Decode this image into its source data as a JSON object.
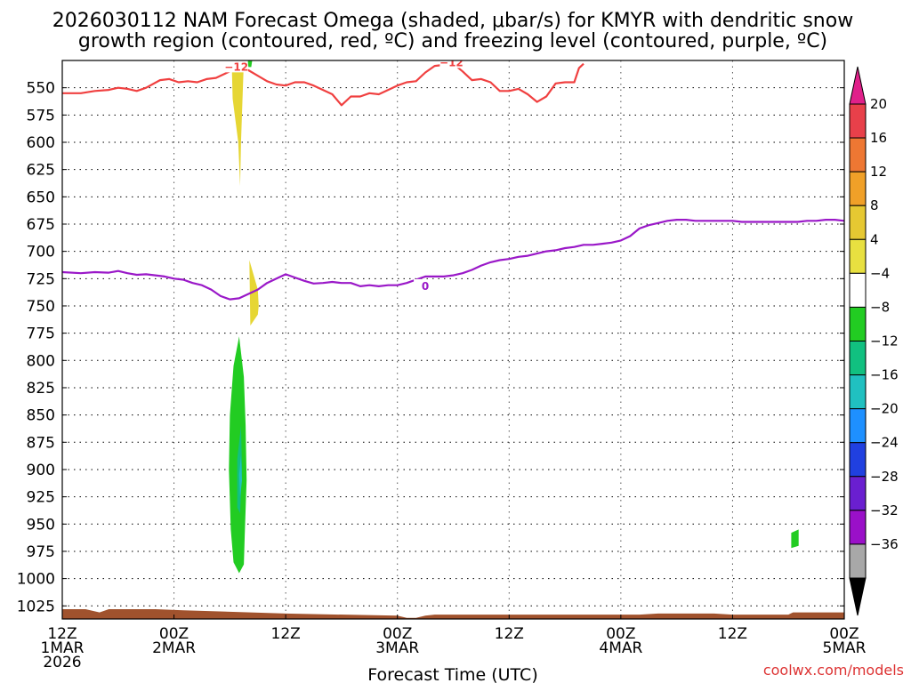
{
  "chart_data": {
    "type": "time-height",
    "title_line1": "2026030112 NAM Forecast Omega (shaded, μbar/s) for KMYR with dendritic snow",
    "title_line2": "growth region (contoured, red, ºC) and freezing level (contoured, purple, ºC)",
    "xlabel": "Forecast Time (UTC)",
    "credit": "coolwx.com/models",
    "x_hours_range": [
      0,
      84
    ],
    "y_range_hPa": [
      525,
      1037
    ],
    "yticks": [
      550,
      575,
      600,
      625,
      650,
      675,
      700,
      725,
      750,
      775,
      800,
      825,
      850,
      875,
      900,
      925,
      950,
      975,
      1000,
      1025
    ],
    "xticks": [
      {
        "hour": 0,
        "l1": "12Z",
        "l2": "1MAR",
        "l3": "2026"
      },
      {
        "hour": 12,
        "l1": "00Z",
        "l2": "2MAR",
        "l3": ""
      },
      {
        "hour": 24,
        "l1": "12Z",
        "l2": "",
        "l3": ""
      },
      {
        "hour": 36,
        "l1": "00Z",
        "l2": "3MAR",
        "l3": ""
      },
      {
        "hour": 48,
        "l1": "12Z",
        "l2": "",
        "l3": ""
      },
      {
        "hour": 60,
        "l1": "00Z",
        "l2": "4MAR",
        "l3": ""
      },
      {
        "hour": 72,
        "l1": "12Z",
        "l2": "",
        "l3": ""
      },
      {
        "hour": 84,
        "l1": "00Z",
        "l2": "5MAR",
        "l3": ""
      }
    ],
    "colorbar": {
      "labels": [
        "20",
        "16",
        "12",
        "8",
        "4",
        "−4",
        "−8",
        "−12",
        "−16",
        "−20",
        "−24",
        "−28",
        "−32",
        "−36"
      ],
      "colors": [
        "#e8404a",
        "#ee7733",
        "#f0a028",
        "#e6c832",
        "#e8e040",
        "#ffffff",
        "#22cc22",
        "#11c080",
        "#20c0c0",
        "#1e90ff",
        "#2040e0",
        "#6a1fd0",
        "#9a10c8",
        "#a8a8a8"
      ],
      "top_arrow_color": "#e0208a",
      "bottom_arrow_color": "#000000"
    },
    "dendritic_line": {
      "label": "−12",
      "color": "#f04040",
      "points": [
        [
          0,
          555
        ],
        [
          2,
          555
        ],
        [
          3.5,
          553
        ],
        [
          5,
          552
        ],
        [
          6,
          550
        ],
        [
          7,
          551
        ],
        [
          8,
          553
        ],
        [
          9,
          550
        ],
        [
          10.5,
          543
        ],
        [
          11.5,
          542
        ],
        [
          12.5,
          545
        ],
        [
          13.5,
          544
        ],
        [
          14.5,
          545
        ],
        [
          15.5,
          542
        ],
        [
          16.5,
          541
        ],
        [
          17.5,
          537
        ],
        [
          18.5,
          533
        ],
        [
          19,
          532
        ],
        [
          20,
          534
        ],
        [
          21,
          539
        ],
        [
          22,
          544
        ],
        [
          23,
          547
        ],
        [
          24,
          548
        ],
        [
          25,
          545
        ],
        [
          26,
          545
        ],
        [
          27,
          548
        ],
        [
          28,
          552
        ],
        [
          29,
          556
        ],
        [
          30,
          566
        ],
        [
          31,
          558
        ],
        [
          32,
          558
        ],
        [
          33,
          555
        ],
        [
          34,
          556
        ],
        [
          35,
          552
        ],
        [
          36,
          548
        ],
        [
          37,
          545
        ],
        [
          38,
          544
        ],
        [
          39,
          536
        ],
        [
          40,
          530
        ],
        [
          42,
          528
        ],
        [
          43,
          535
        ],
        [
          44,
          543
        ],
        [
          45,
          542
        ],
        [
          46,
          545
        ],
        [
          47,
          553
        ],
        [
          48,
          553
        ],
        [
          49,
          551
        ],
        [
          50,
          556
        ],
        [
          51,
          563
        ],
        [
          52,
          558
        ],
        [
          53,
          546
        ],
        [
          54,
          545
        ],
        [
          55,
          545
        ],
        [
          55.5,
          532
        ],
        [
          56,
          528
        ]
      ]
    },
    "freezing_line": {
      "label": "0",
      "color": "#9a18c8",
      "points": [
        [
          0,
          719
        ],
        [
          2,
          720
        ],
        [
          3.5,
          719
        ],
        [
          5,
          719.5
        ],
        [
          6,
          718
        ],
        [
          7,
          720
        ],
        [
          8,
          721.5
        ],
        [
          9,
          721
        ],
        [
          11,
          723
        ],
        [
          12,
          725
        ],
        [
          13,
          726
        ],
        [
          14,
          729
        ],
        [
          15,
          731
        ],
        [
          16,
          735
        ],
        [
          17,
          741
        ],
        [
          18,
          744
        ],
        [
          19,
          743
        ],
        [
          20,
          739
        ],
        [
          21,
          735
        ],
        [
          22,
          729
        ],
        [
          23,
          725
        ],
        [
          24,
          721
        ],
        [
          25,
          724
        ],
        [
          26,
          727
        ],
        [
          27,
          729.5
        ],
        [
          28,
          729
        ],
        [
          29,
          728
        ],
        [
          30,
          729
        ],
        [
          31,
          729
        ],
        [
          32,
          732
        ],
        [
          33,
          731
        ],
        [
          34,
          732
        ],
        [
          35,
          731
        ],
        [
          36,
          731
        ],
        [
          37,
          729
        ],
        [
          38,
          726
        ],
        [
          39,
          723
        ],
        [
          40,
          723
        ],
        [
          41,
          723
        ],
        [
          42,
          722
        ],
        [
          43,
          720
        ],
        [
          44,
          717
        ],
        [
          45,
          713
        ],
        [
          46,
          710
        ],
        [
          47,
          708
        ],
        [
          48,
          707
        ],
        [
          49,
          705
        ],
        [
          50,
          704
        ],
        [
          51,
          702
        ],
        [
          52,
          700
        ],
        [
          53,
          699
        ],
        [
          54,
          697
        ],
        [
          55,
          696
        ],
        [
          56,
          694
        ],
        [
          57,
          694
        ],
        [
          58,
          693
        ],
        [
          59,
          692
        ],
        [
          60,
          690
        ],
        [
          61,
          686
        ],
        [
          62,
          679
        ],
        [
          63,
          676
        ],
        [
          64,
          674
        ],
        [
          65,
          672
        ],
        [
          66,
          671
        ],
        [
          67,
          671
        ],
        [
          68,
          672
        ],
        [
          69,
          672
        ],
        [
          70,
          672
        ],
        [
          71,
          672
        ],
        [
          72,
          672
        ],
        [
          73,
          673
        ],
        [
          74,
          673
        ],
        [
          75,
          673
        ],
        [
          76,
          673
        ],
        [
          77,
          673
        ],
        [
          78,
          673
        ],
        [
          79,
          673
        ],
        [
          80,
          672
        ],
        [
          81,
          672
        ],
        [
          82,
          671
        ],
        [
          83,
          671
        ],
        [
          84,
          672
        ]
      ]
    },
    "shaded_regions": [
      {
        "name": "omega-plus4-upper",
        "value_range": "4 to 8",
        "color": "#e6d634",
        "points": [
          [
            18.2,
            525
          ],
          [
            19.5,
            525
          ],
          [
            19.2,
            600
          ],
          [
            19.1,
            640
          ],
          [
            18.9,
            600
          ],
          [
            18.3,
            560
          ]
        ]
      },
      {
        "name": "omega-minus8-upper-speck",
        "value_range": "-8 to -4",
        "color": "#22cc22",
        "points": [
          [
            19.9,
            525
          ],
          [
            20.4,
            525
          ],
          [
            20.3,
            531
          ],
          [
            20.0,
            531
          ]
        ]
      },
      {
        "name": "omega-plus4-lower",
        "value_range": "4 to 8",
        "color": "#e6d634",
        "points": [
          [
            20.1,
            708
          ],
          [
            21.0,
            735
          ],
          [
            21.1,
            750
          ],
          [
            21.0,
            758
          ],
          [
            20.2,
            768
          ]
        ]
      },
      {
        "name": "omega-minus4-lower",
        "value_range": "-8 to -4",
        "color": "#22cc22",
        "points": [
          [
            19.0,
            778
          ],
          [
            19.5,
            815
          ],
          [
            19.7,
            860
          ],
          [
            19.8,
            910
          ],
          [
            19.6,
            960
          ],
          [
            19.5,
            987
          ],
          [
            19.0,
            995
          ],
          [
            18.4,
            985
          ],
          [
            18.1,
            955
          ],
          [
            17.9,
            900
          ],
          [
            18.0,
            850
          ],
          [
            18.4,
            805
          ]
        ]
      },
      {
        "name": "omega-minus8-core",
        "value_range": "-12 to -8",
        "color": "#11c080",
        "points": [
          [
            19.2,
            860
          ],
          [
            19.3,
            900
          ],
          [
            19.1,
            940
          ],
          [
            18.8,
            935
          ],
          [
            18.8,
            890
          ]
        ]
      },
      {
        "name": "omega-minus12-core",
        "value_range": "-16 to -12",
        "color": "#20c0c0",
        "points": [
          [
            19.2,
            887
          ],
          [
            19.3,
            910
          ],
          [
            19.1,
            925
          ],
          [
            19.0,
            905
          ]
        ]
      },
      {
        "name": "omega-minus4-right",
        "value_range": "-8 to -4",
        "color": "#22cc22",
        "points": [
          [
            78.3,
            958
          ],
          [
            79.1,
            955
          ],
          [
            79.1,
            970
          ],
          [
            78.3,
            972
          ]
        ]
      }
    ],
    "terrain": {
      "color": "#a0522d",
      "points": [
        [
          0,
          1028
        ],
        [
          2.5,
          1028
        ],
        [
          4,
          1031
        ],
        [
          5,
          1028
        ],
        [
          10,
          1028
        ],
        [
          13,
          1029
        ],
        [
          24,
          1032
        ],
        [
          36,
          1034
        ],
        [
          37,
          1036
        ],
        [
          38,
          1036
        ],
        [
          39,
          1034
        ],
        [
          40,
          1033
        ],
        [
          54,
          1033
        ],
        [
          60,
          1033
        ],
        [
          62,
          1033
        ],
        [
          64,
          1032
        ],
        [
          70,
          1032
        ],
        [
          72,
          1033
        ],
        [
          78,
          1033
        ],
        [
          78.5,
          1031
        ],
        [
          84,
          1031
        ]
      ]
    },
    "surface_pressure_hPa": 1037
  }
}
